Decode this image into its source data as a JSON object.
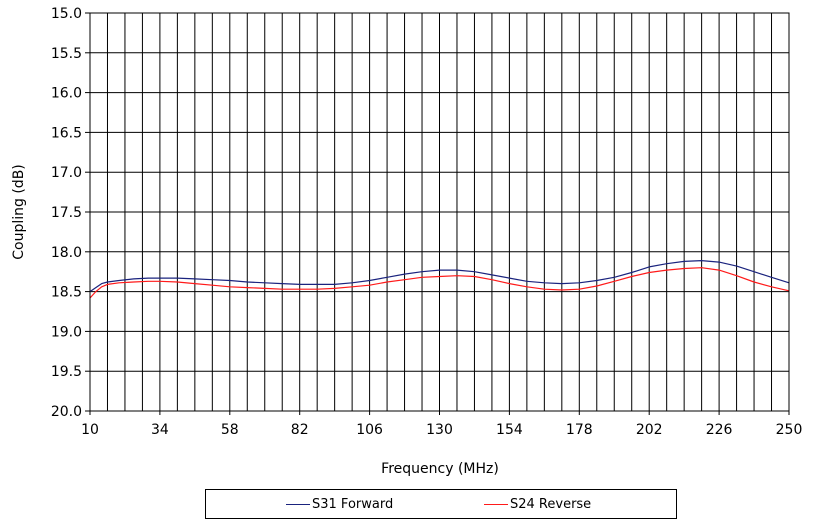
{
  "chart_data": {
    "type": "line",
    "xlabel": "Frequency (MHz)",
    "ylabel": "Coupling (dB)",
    "xlim": [
      10,
      250
    ],
    "ylim": [
      15.0,
      20.0
    ],
    "y_inverted": true,
    "x_ticks": [
      "10",
      "34",
      "58",
      "82",
      "106",
      "130",
      "154",
      "178",
      "202",
      "226",
      "250"
    ],
    "y_ticks": [
      "15.0",
      "15.5",
      "16.0",
      "16.5",
      "17.0",
      "17.5",
      "18.0",
      "18.5",
      "19.0",
      "19.5",
      "20.0"
    ],
    "grid": "on",
    "legend_position": "bottom",
    "series": [
      {
        "name": "S31 Forward",
        "color": "#1a237e",
        "x": [
          10,
          12,
          14,
          16,
          20,
          25,
          30,
          34,
          40,
          46,
          52,
          58,
          64,
          70,
          76,
          82,
          88,
          94,
          100,
          106,
          112,
          118,
          124,
          130,
          136,
          142,
          148,
          154,
          160,
          166,
          172,
          178,
          184,
          190,
          196,
          202,
          208,
          214,
          220,
          226,
          232,
          238,
          244,
          250
        ],
        "y": [
          18.5,
          18.45,
          18.4,
          18.38,
          18.36,
          18.34,
          18.33,
          18.33,
          18.33,
          18.34,
          18.35,
          18.36,
          18.38,
          18.39,
          18.4,
          18.41,
          18.41,
          18.41,
          18.39,
          18.36,
          18.32,
          18.28,
          18.25,
          18.23,
          18.23,
          18.25,
          18.29,
          18.33,
          18.37,
          18.39,
          18.4,
          18.39,
          18.36,
          18.32,
          18.26,
          18.19,
          18.15,
          18.12,
          18.11,
          18.13,
          18.18,
          18.25,
          18.32,
          18.39
        ]
      },
      {
        "name": "S24 Reverse",
        "color": "#ff1a1a",
        "x": [
          10,
          12,
          14,
          16,
          20,
          25,
          30,
          34,
          40,
          46,
          52,
          58,
          64,
          70,
          76,
          82,
          88,
          94,
          100,
          106,
          112,
          118,
          124,
          130,
          136,
          142,
          148,
          154,
          160,
          166,
          172,
          178,
          184,
          190,
          196,
          202,
          208,
          214,
          220,
          226,
          232,
          238,
          244,
          250
        ],
        "y": [
          18.58,
          18.5,
          18.44,
          18.41,
          18.39,
          18.38,
          18.37,
          18.37,
          18.38,
          18.4,
          18.42,
          18.44,
          18.45,
          18.46,
          18.47,
          18.47,
          18.47,
          18.46,
          18.44,
          18.42,
          18.38,
          18.35,
          18.32,
          18.31,
          18.3,
          18.31,
          18.35,
          18.4,
          18.44,
          18.47,
          18.48,
          18.47,
          18.43,
          18.37,
          18.31,
          18.26,
          18.23,
          18.21,
          18.2,
          18.23,
          18.3,
          18.38,
          18.44,
          18.49
        ]
      }
    ]
  }
}
